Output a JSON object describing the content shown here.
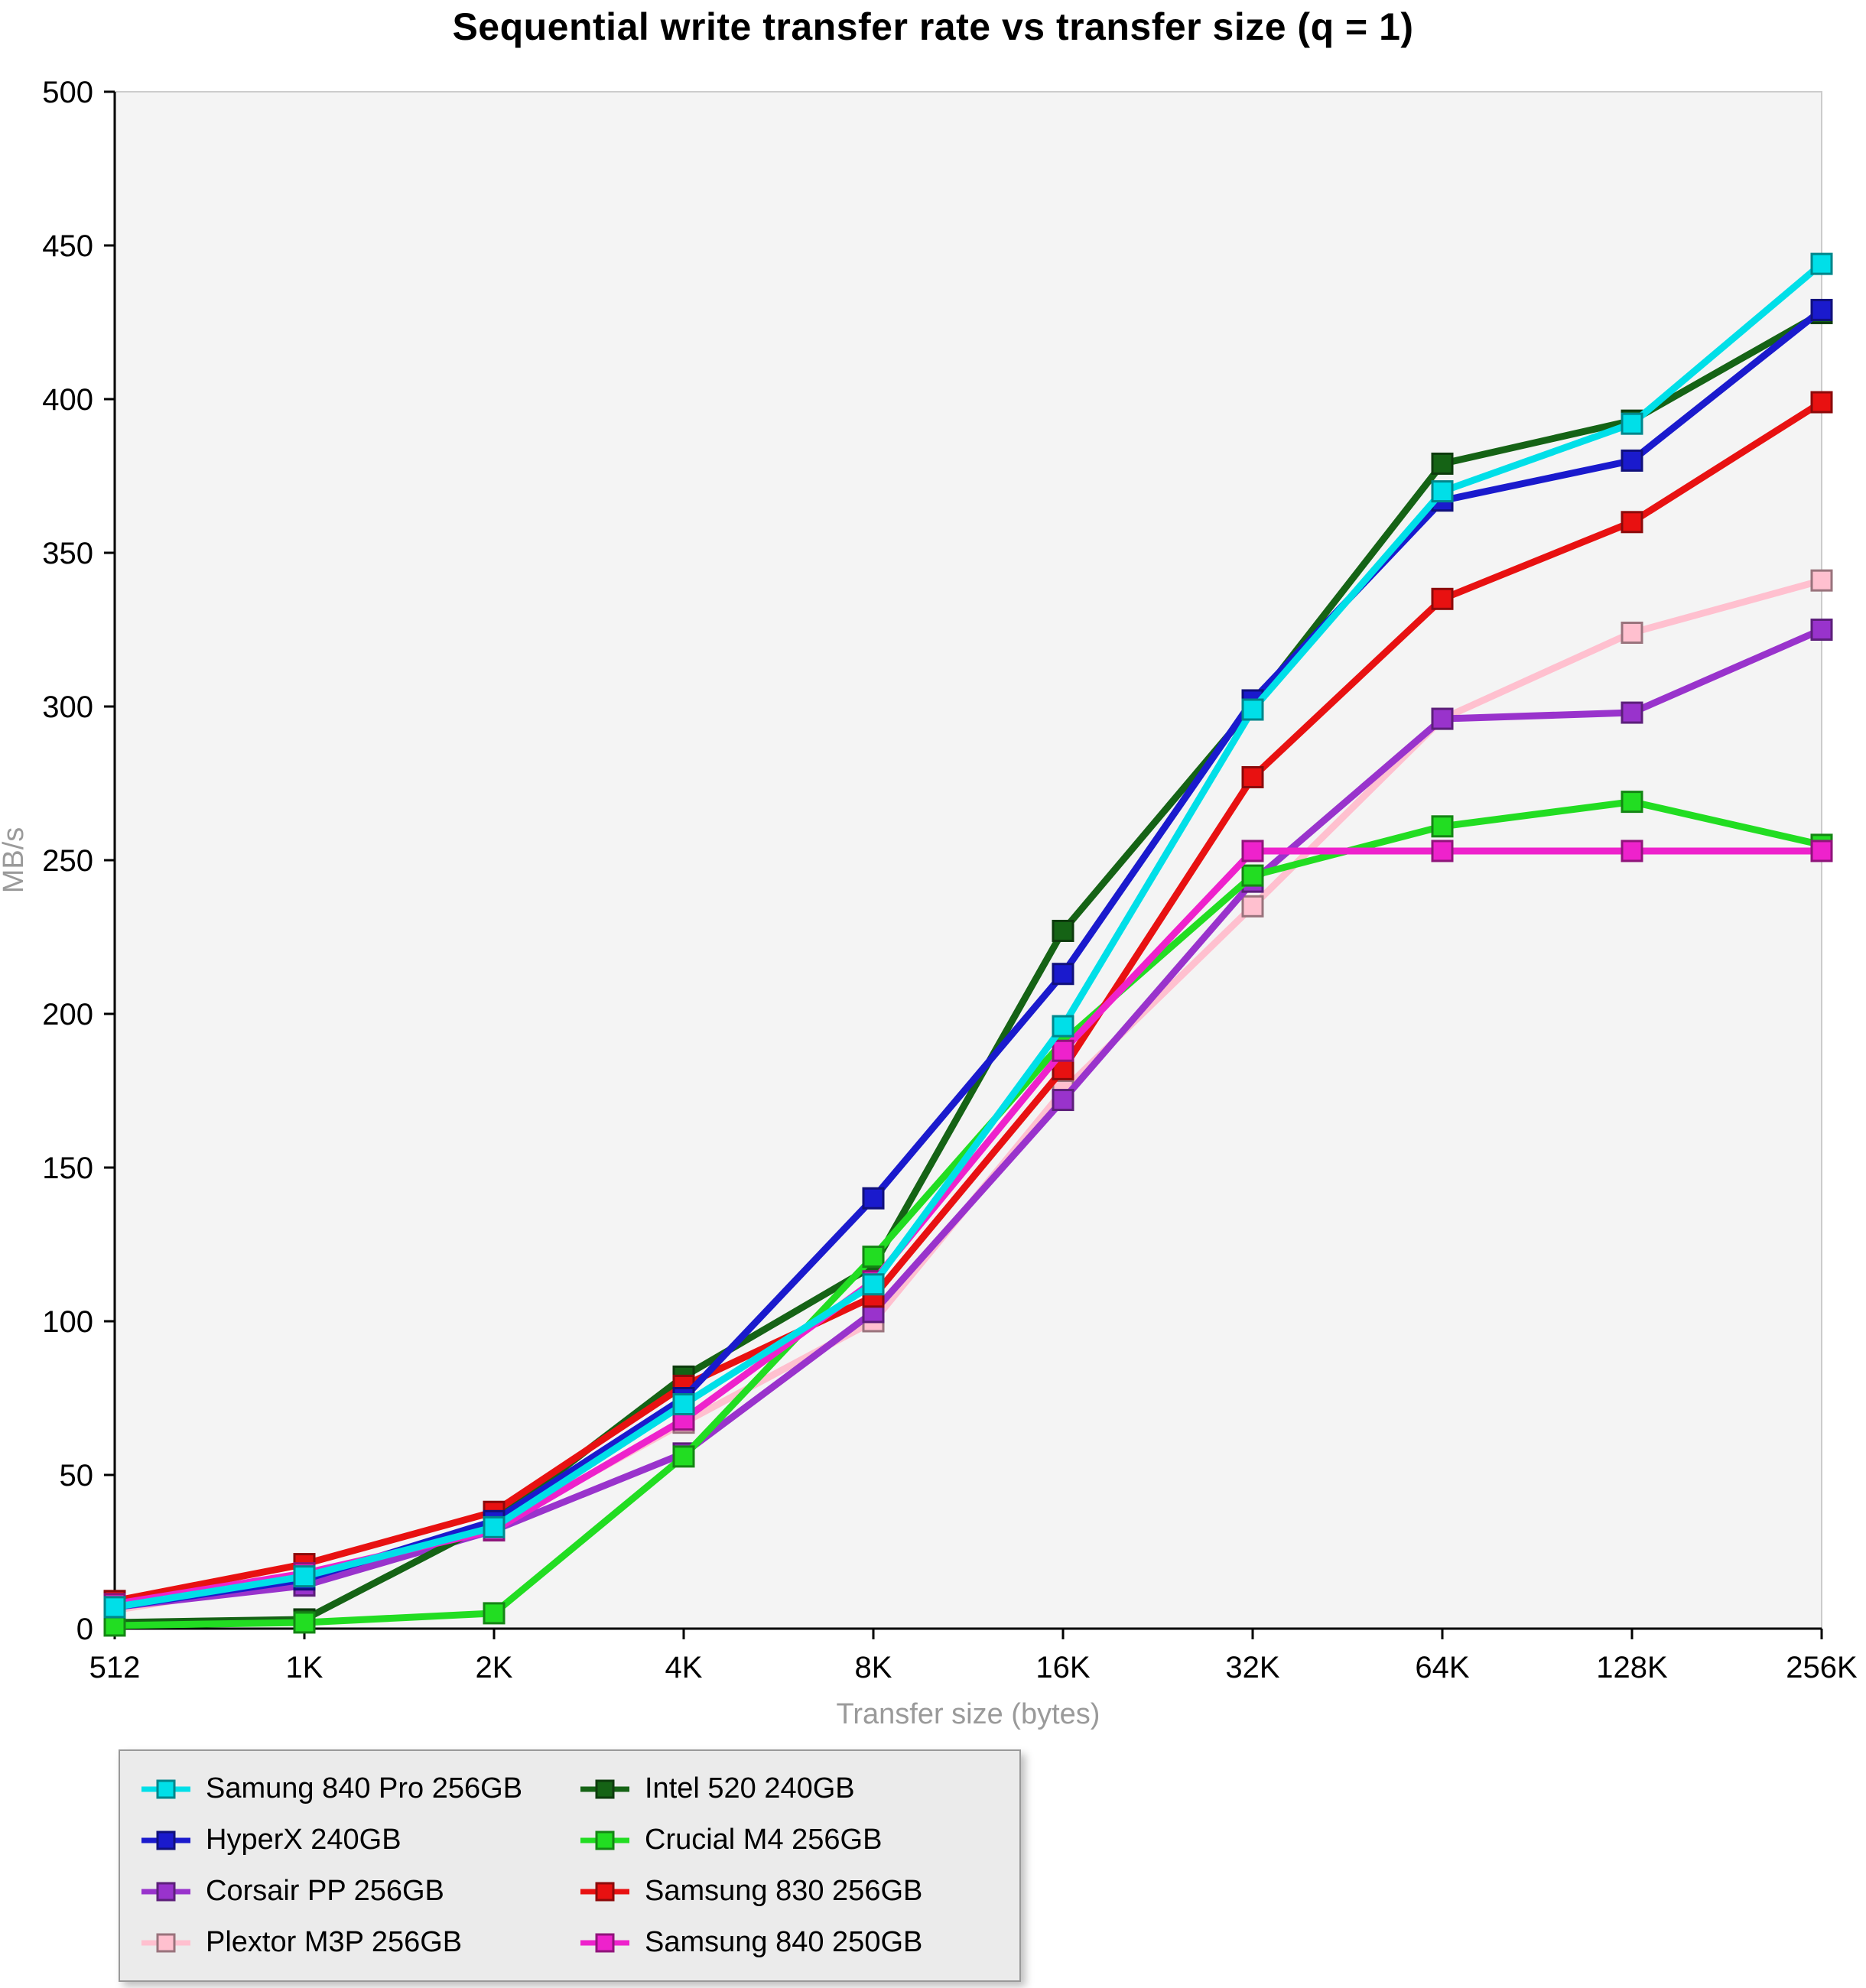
{
  "chart_data": {
    "type": "line",
    "title": "Sequential write transfer rate vs transfer size (q = 1)",
    "xlabel": "Transfer size (bytes)",
    "ylabel": "MB/s",
    "categories": [
      "512",
      "1K",
      "2K",
      "4K",
      "8K",
      "16K",
      "32K",
      "64K",
      "128K",
      "256K"
    ],
    "ylim": [
      0,
      500
    ],
    "ytick_step": 50,
    "grid": false,
    "legend_position": "bottom-left",
    "plot_bg": "#f4f4f4",
    "axis_label_color": "#9a9a9a",
    "series": [
      {
        "name": "Samung 840 Pro 256GB",
        "color": "#00DFE8",
        "values": [
          7,
          17,
          33,
          73,
          112,
          196,
          299,
          370,
          392,
          444
        ]
      },
      {
        "name": "HyperX 240GB",
        "color": "#1A1ACD",
        "values": [
          7,
          16,
          35,
          75,
          140,
          213,
          302,
          367,
          380,
          429
        ]
      },
      {
        "name": "Corsair PP 256GB",
        "color": "#9933CC",
        "values": [
          7,
          14,
          32,
          57,
          103,
          172,
          243,
          296,
          298,
          325
        ]
      },
      {
        "name": "Plextor M3P 256GB",
        "color": "#FFC0CF",
        "values": [
          6,
          16,
          33,
          67,
          100,
          175,
          235,
          296,
          324,
          341
        ]
      },
      {
        "name": "Intel 520 240GB",
        "color": "#156315",
        "values": [
          2,
          3,
          35,
          82,
          118,
          227,
          300,
          379,
          393,
          428
        ]
      },
      {
        "name": "Crucial M4 256GB",
        "color": "#22DD22",
        "values": [
          1,
          2,
          5,
          56,
          121,
          191,
          245,
          261,
          269,
          255
        ]
      },
      {
        "name": "Samsung 830 256GB",
        "color": "#E81111",
        "values": [
          9,
          21,
          38,
          79,
          108,
          182,
          277,
          335,
          360,
          399
        ]
      },
      {
        "name": "Samsung 840 250GB",
        "color": "#EE22CC",
        "values": [
          8,
          18,
          32,
          68,
          113,
          188,
          253,
          253,
          253,
          253
        ]
      }
    ],
    "draw_order": [
      3,
      2,
      4,
      5,
      6,
      1,
      7,
      0
    ]
  }
}
